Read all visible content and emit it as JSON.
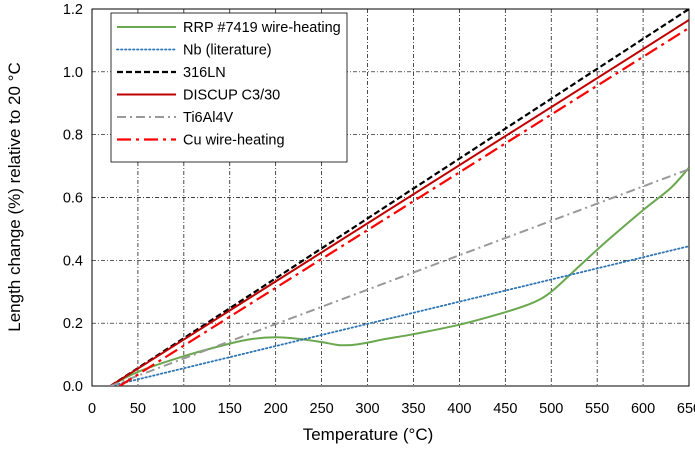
{
  "chart_data": {
    "type": "line",
    "title": "",
    "xlabel": "Temperature (°C)",
    "ylabel": "Length change (%) relative to 20 °C",
    "xlim": [
      0,
      650
    ],
    "ylim": [
      0.0,
      1.2
    ],
    "x_ticks": [
      "0",
      "50",
      "100",
      "150",
      "200",
      "250",
      "300",
      "350",
      "400",
      "450",
      "500",
      "550",
      "600",
      "650"
    ],
    "y_ticks": [
      "0.0",
      "0.2",
      "0.4",
      "0.6",
      "0.8",
      "1.0",
      "1.2"
    ],
    "grid": true,
    "legend_position": "top-left",
    "series": [
      {
        "name": "RRP #7419 wire-heating",
        "color": "#6aa84f",
        "dash": "solid",
        "x": [
          20,
          50,
          100,
          150,
          175,
          200,
          225,
          250,
          270,
          290,
          320,
          350,
          400,
          450,
          480,
          500,
          530,
          560,
          600,
          630,
          650
        ],
        "y": [
          0.0,
          0.045,
          0.095,
          0.135,
          0.15,
          0.155,
          0.15,
          0.14,
          0.13,
          0.133,
          0.15,
          0.165,
          0.195,
          0.235,
          0.265,
          0.3,
          0.38,
          0.46,
          0.56,
          0.63,
          0.695
        ]
      },
      {
        "name": "Nb (literature)",
        "color": "#2e75b6",
        "dash": "dotted",
        "x": [
          20,
          650
        ],
        "y": [
          0.0,
          0.445
        ]
      },
      {
        "name": "316LN",
        "color": "#000000",
        "dash": "dashed",
        "x": [
          20,
          650
        ],
        "y": [
          0.0,
          1.2
        ]
      },
      {
        "name": "DISCUP C3/30",
        "color": "#c00000",
        "dash": "solid",
        "x": [
          20,
          650
        ],
        "y": [
          0.0,
          1.165
        ]
      },
      {
        "name": "Ti6Al4V",
        "color": "#999999",
        "dash": "dashdot",
        "x": [
          20,
          650
        ],
        "y": [
          0.0,
          0.69
        ]
      },
      {
        "name": "Cu wire-heating",
        "color": "#ff0000",
        "dash": "longdashdot",
        "x": [
          30,
          650
        ],
        "y": [
          0.0,
          1.14
        ]
      }
    ]
  }
}
